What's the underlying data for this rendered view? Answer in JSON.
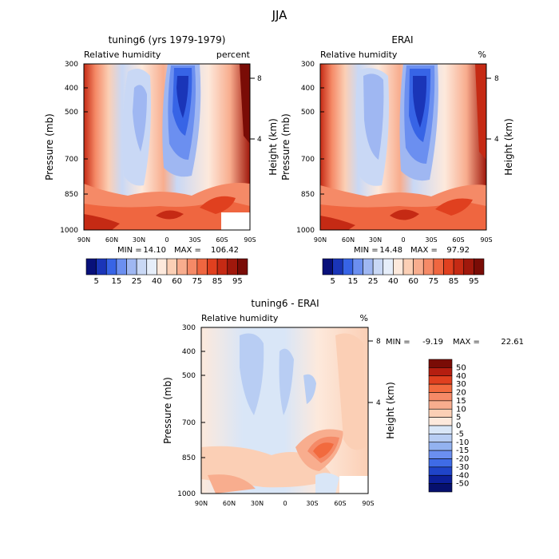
{
  "figure": {
    "title": "JJA"
  },
  "chart_data": [
    {
      "type": "heatmap",
      "title": "tuning6 (yrs 1979-1979)",
      "subtitle_left": "Relative humidity",
      "subtitle_right": "percent",
      "xlabel": "",
      "ylabel": "Pressure (mb)",
      "ylabel_right": "Height (km)",
      "x_ticks": [
        "90N",
        "60N",
        "30N",
        "0",
        "30S",
        "60S",
        "90S"
      ],
      "y_ticks": [
        "300",
        "400",
        "500",
        "700",
        "850",
        "1000"
      ],
      "y_right_ticks": [
        "8",
        "4"
      ],
      "stats": {
        "min_label": "MIN =",
        "min": "14.10",
        "max_label": "MAX =",
        "max": "106.42"
      },
      "colorbar": {
        "labels": [
          "5",
          "15",
          "25",
          "40",
          "60",
          "75",
          "85",
          "95"
        ],
        "colors": [
          "#08107a",
          "#1a35b8",
          "#3764e6",
          "#6b8ff0",
          "#9fb7f2",
          "#c9d8f5",
          "#e6eefa",
          "#fde9dc",
          "#fbcfb5",
          "#f8ad8e",
          "#f58a67",
          "#ef6640",
          "#e0401f",
          "#c52a14",
          "#a0180c",
          "#7a0c06"
        ]
      }
    },
    {
      "type": "heatmap",
      "title": "ERAI",
      "subtitle_left": "Relative humidity",
      "subtitle_right": "%",
      "xlabel": "",
      "ylabel": "Pressure (mb)",
      "ylabel_right": "Height (km)",
      "x_ticks": [
        "90N",
        "60N",
        "30N",
        "0",
        "30S",
        "60S",
        "90S"
      ],
      "y_ticks": [
        "300",
        "400",
        "500",
        "700",
        "850",
        "1000"
      ],
      "y_right_ticks": [
        "8",
        "4"
      ],
      "stats": {
        "min_label": "MIN =",
        "min": "14.48",
        "max_label": "MAX =",
        "max": "97.92"
      },
      "colorbar": {
        "labels": [
          "5",
          "15",
          "25",
          "40",
          "60",
          "75",
          "85",
          "95"
        ]
      }
    },
    {
      "type": "heatmap",
      "title": "tuning6 - ERAI",
      "subtitle_left": "Relative humidity",
      "subtitle_right": "%",
      "xlabel": "",
      "ylabel": "Pressure (mb)",
      "ylabel_right": "Height (km)",
      "x_ticks": [
        "90N",
        "60N",
        "30N",
        "0",
        "30S",
        "60S",
        "90S"
      ],
      "y_ticks": [
        "300",
        "400",
        "500",
        "700",
        "850",
        "1000"
      ],
      "y_right_ticks": [
        "8",
        "4"
      ],
      "stats": {
        "min_label": "MIN =",
        "min": "-9.19",
        "max_label": "MAX =",
        "max": "22.61"
      },
      "colorbar": {
        "labels": [
          "50",
          "40",
          "30",
          "20",
          "15",
          "10",
          "5",
          "0",
          "-5",
          "-10",
          "-15",
          "-20",
          "-30",
          "-40",
          "-50"
        ],
        "colors": [
          "#7a0c06",
          "#b51e10",
          "#e0401f",
          "#f26a3e",
          "#f58a67",
          "#f8ad8e",
          "#fbcfb5",
          "#fde9dc",
          "#d9e6f7",
          "#b8cdf3",
          "#93b2f0",
          "#6b8ff0",
          "#3f6be6",
          "#1f44c9",
          "#0c1f9a",
          "#06106e"
        ]
      }
    }
  ]
}
